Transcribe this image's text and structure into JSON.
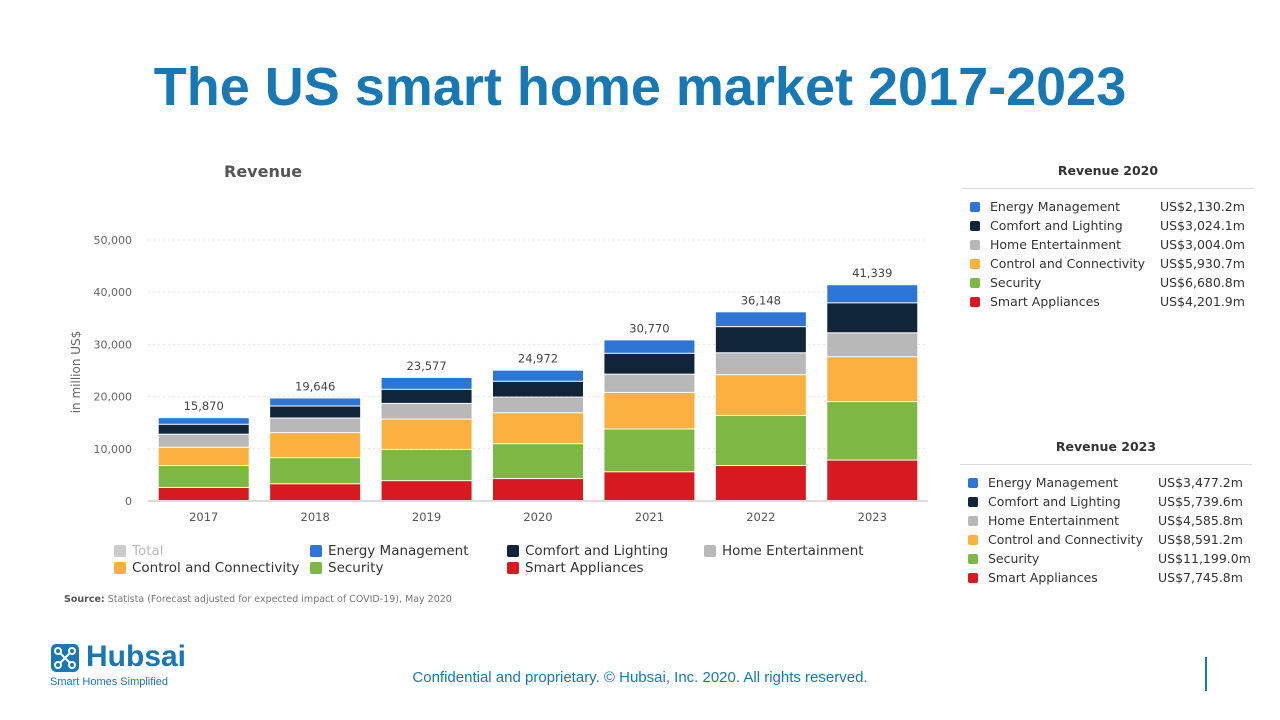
{
  "page": {
    "title": "The US smart home market 2017-2023",
    "footer": "Confidential and proprietary. © Hubsai, Inc. 2020. All rights reserved.",
    "logo_word": "Hubsai",
    "logo_tagline": "Smart Homes Simplified"
  },
  "colors": {
    "accent": "#1778b4",
    "energy": "#2e76d6",
    "comfort": "#10243a",
    "entertainment": "#b8b8b8",
    "control": "#fbb040",
    "security": "#7cb843",
    "appliances": "#d71920",
    "total": "#cccccc"
  },
  "chart_data": {
    "type": "bar",
    "stacked": true,
    "title": "Revenue",
    "ylabel": "in million US$",
    "ylim": [
      0,
      50000
    ],
    "yticks": [
      "0",
      "10,000",
      "20,000",
      "30,000",
      "40,000",
      "50,000"
    ],
    "categories": [
      "2017",
      "2018",
      "2019",
      "2020",
      "2021",
      "2022",
      "2023"
    ],
    "totals": [
      15870,
      19646,
      23577,
      24972,
      30770,
      36148,
      41339
    ],
    "total_labels": [
      "15,870",
      "19,646",
      "23,577",
      "24,972",
      "30,770",
      "36,148",
      "41,339"
    ],
    "series": [
      {
        "name": "Smart Appliances",
        "key": "appliances",
        "values": [
          2500,
          3200,
          3800,
          4202,
          5500,
          6700,
          7746
        ]
      },
      {
        "name": "Security",
        "key": "security",
        "values": [
          4200,
          5000,
          6000,
          6681,
          8200,
          9600,
          11199
        ]
      },
      {
        "name": "Control and Connectivity",
        "key": "control",
        "values": [
          3500,
          4800,
          5800,
          5931,
          7000,
          7800,
          8591
        ]
      },
      {
        "name": "Home Entertainment",
        "key": "entertainment",
        "values": [
          2500,
          2800,
          3000,
          3004,
          3500,
          4200,
          4586
        ]
      },
      {
        "name": "Comfort and Lighting",
        "key": "comfort",
        "values": [
          1900,
          2300,
          2700,
          3024,
          4000,
          5000,
          5740
        ]
      },
      {
        "name": "Energy Management",
        "key": "energy",
        "values": [
          1270,
          1546,
          2277,
          2130,
          2570,
          2848,
          3477
        ]
      }
    ],
    "legend": [
      {
        "name": "Total",
        "key": "total",
        "muted": true
      },
      {
        "name": "Energy Management",
        "key": "energy"
      },
      {
        "name": "Comfort and Lighting",
        "key": "comfort"
      },
      {
        "name": "Home Entertainment",
        "key": "entertainment"
      },
      {
        "name": "Control and Connectivity",
        "key": "control"
      },
      {
        "name": "Security",
        "key": "security"
      },
      {
        "name": "Smart Appliances",
        "key": "appliances"
      }
    ],
    "legend_position": "bottom",
    "grid": true,
    "source_label": "Source:",
    "source_text": "Statista (Forecast adjusted for expected impact of COVID-19), May 2020"
  },
  "tables": [
    {
      "title": "Revenue 2020",
      "rows": [
        {
          "name": "Energy Management",
          "key": "energy",
          "value": "US$2,130.2m"
        },
        {
          "name": "Comfort and Lighting",
          "key": "comfort",
          "value": "US$3,024.1m"
        },
        {
          "name": "Home Entertainment",
          "key": "entertainment",
          "value": "US$3,004.0m"
        },
        {
          "name": "Control and Connectivity",
          "key": "control",
          "value": "US$5,930.7m"
        },
        {
          "name": "Security",
          "key": "security",
          "value": "US$6,680.8m"
        },
        {
          "name": "Smart Appliances",
          "key": "appliances",
          "value": "US$4,201.9m"
        }
      ]
    },
    {
      "title": "Revenue 2023",
      "rows": [
        {
          "name": "Energy Management",
          "key": "energy",
          "value": "US$3,477.2m"
        },
        {
          "name": "Comfort and Lighting",
          "key": "comfort",
          "value": "US$5,739.6m"
        },
        {
          "name": "Home Entertainment",
          "key": "entertainment",
          "value": "US$4,585.8m"
        },
        {
          "name": "Control and Connectivity",
          "key": "control",
          "value": "US$8,591.2m"
        },
        {
          "name": "Security",
          "key": "security",
          "value": "US$11,199.0m"
        },
        {
          "name": "Smart Appliances",
          "key": "appliances",
          "value": "US$7,745.8m"
        }
      ]
    }
  ]
}
